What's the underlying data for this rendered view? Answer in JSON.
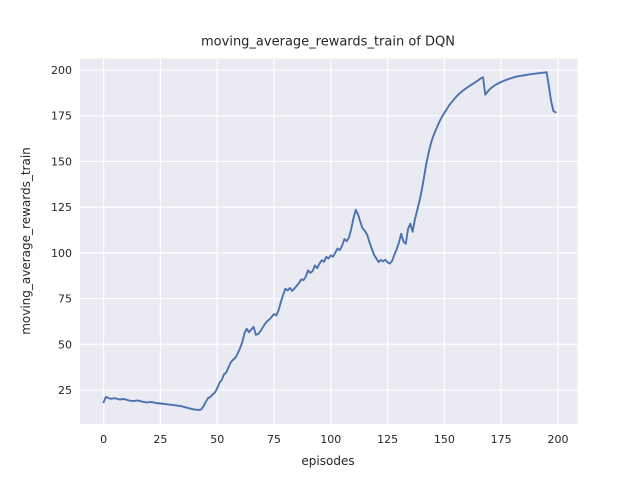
{
  "figure": {
    "title": "moving_average_rewards_train of DQN",
    "xlabel": "episodes",
    "ylabel": "moving_average_rewards_train"
  },
  "chart_data": {
    "type": "line",
    "title": "moving_average_rewards_train of DQN",
    "xlabel": "episodes",
    "ylabel": "moving_average_rewards_train",
    "xticks": [
      0,
      25,
      50,
      75,
      100,
      125,
      150,
      175,
      200
    ],
    "yticks": [
      25,
      50,
      75,
      100,
      125,
      150,
      175,
      200
    ],
    "xlim": [
      -10.4,
      208.6
    ],
    "ylim": [
      6.4,
      206.3
    ],
    "grid": true,
    "legend_position": "none",
    "style": {
      "line_color": "#4C72B0",
      "plot_background": "#EAEAF2",
      "grid_color": "#FFFFFF",
      "text_color": "#262626",
      "figure_background": "#FFFFFF"
    },
    "series": [
      {
        "name": "moving_average_rewards_train",
        "points": [
          [
            0,
            18.3
          ],
          [
            1,
            21.2
          ],
          [
            2,
            20.7
          ],
          [
            3,
            20.2
          ],
          [
            5,
            20.5
          ],
          [
            7,
            19.8
          ],
          [
            9,
            20.1
          ],
          [
            11,
            19.3
          ],
          [
            13,
            18.9
          ],
          [
            15,
            19.3
          ],
          [
            17,
            18.6
          ],
          [
            19,
            18.2
          ],
          [
            21,
            18.5
          ],
          [
            23,
            17.9
          ],
          [
            25,
            17.6
          ],
          [
            28,
            17.2
          ],
          [
            31,
            16.7
          ],
          [
            34,
            16.2
          ],
          [
            37,
            15.2
          ],
          [
            40,
            14.3
          ],
          [
            42,
            14.1
          ],
          [
            43,
            14.4
          ],
          [
            44,
            16.2
          ],
          [
            45,
            18.6
          ],
          [
            46,
            20.6
          ],
          [
            47,
            21.2
          ],
          [
            48,
            22.6
          ],
          [
            49,
            23.6
          ],
          [
            50,
            26.0
          ],
          [
            51,
            29.0
          ],
          [
            52,
            30.6
          ],
          [
            53,
            33.5
          ],
          [
            54,
            34.6
          ],
          [
            55,
            37.6
          ],
          [
            56,
            40.1
          ],
          [
            57,
            41.6
          ],
          [
            58,
            42.6
          ],
          [
            59,
            45.0
          ],
          [
            60,
            47.6
          ],
          [
            61,
            51.0
          ],
          [
            62,
            56.0
          ],
          [
            63,
            58.5
          ],
          [
            64,
            56.6
          ],
          [
            65,
            58.1
          ],
          [
            66,
            59.5
          ],
          [
            67,
            55.2
          ],
          [
            68,
            55.6
          ],
          [
            69,
            57.1
          ],
          [
            70,
            59.1
          ],
          [
            71,
            61.1
          ],
          [
            72,
            62.6
          ],
          [
            73,
            63.6
          ],
          [
            74,
            65.1
          ],
          [
            75,
            66.5
          ],
          [
            76,
            65.8
          ],
          [
            77,
            68.5
          ],
          [
            78,
            73.0
          ],
          [
            79,
            77.0
          ],
          [
            80,
            80.4
          ],
          [
            81,
            79.5
          ],
          [
            82,
            80.8
          ],
          [
            83,
            79.2
          ],
          [
            84,
            80.5
          ],
          [
            85,
            82.0
          ],
          [
            86,
            83.5
          ],
          [
            87,
            85.5
          ],
          [
            88,
            85.1
          ],
          [
            89,
            87.0
          ],
          [
            90,
            90.4
          ],
          [
            91,
            89.1
          ],
          [
            92,
            90.0
          ],
          [
            93,
            93.1
          ],
          [
            94,
            91.6
          ],
          [
            95,
            94.0
          ],
          [
            96,
            96.0
          ],
          [
            97,
            95.1
          ],
          [
            98,
            97.8
          ],
          [
            99,
            96.9
          ],
          [
            100,
            98.6
          ],
          [
            101,
            97.9
          ],
          [
            102,
            100.1
          ],
          [
            103,
            102.4
          ],
          [
            104,
            101.5
          ],
          [
            105,
            104.0
          ],
          [
            106,
            107.6
          ],
          [
            107,
            106.4
          ],
          [
            108,
            108.5
          ],
          [
            109,
            113.0
          ],
          [
            110,
            119.0
          ],
          [
            111,
            123.5
          ],
          [
            112,
            121.0
          ],
          [
            113,
            117.0
          ],
          [
            114,
            113.4
          ],
          [
            115,
            112.0
          ],
          [
            116,
            110.0
          ],
          [
            117,
            106.0
          ],
          [
            118,
            102.4
          ],
          [
            119,
            99.0
          ],
          [
            120,
            97.1
          ],
          [
            121,
            95.0
          ],
          [
            122,
            96.1
          ],
          [
            123,
            95.4
          ],
          [
            124,
            96.2
          ],
          [
            125,
            94.8
          ],
          [
            126,
            94.2
          ],
          [
            127,
            95.6
          ],
          [
            128,
            99.0
          ],
          [
            129,
            102.0
          ],
          [
            130,
            105.6
          ],
          [
            131,
            110.4
          ],
          [
            132,
            106.1
          ],
          [
            133,
            105.0
          ],
          [
            134,
            113.0
          ],
          [
            135,
            116.0
          ],
          [
            136,
            111.5
          ],
          [
            137,
            118.0
          ],
          [
            138,
            123.1
          ],
          [
            139,
            128.1
          ],
          [
            140,
            134.1
          ],
          [
            141,
            141.0
          ],
          [
            142,
            148.5
          ],
          [
            143,
            154.5
          ],
          [
            144,
            159.5
          ],
          [
            145,
            163.5
          ],
          [
            146,
            166.6
          ],
          [
            147,
            169.5
          ],
          [
            148,
            172.1
          ],
          [
            149,
            174.5
          ],
          [
            150,
            176.6
          ],
          [
            151,
            178.5
          ],
          [
            152,
            180.5
          ],
          [
            153,
            182.1
          ],
          [
            154,
            183.6
          ],
          [
            155,
            185.1
          ],
          [
            156,
            186.4
          ],
          [
            157,
            187.5
          ],
          [
            158,
            188.6
          ],
          [
            159,
            189.5
          ],
          [
            160,
            190.4
          ],
          [
            161,
            191.2
          ],
          [
            162,
            192.0
          ],
          [
            163,
            192.8
          ],
          [
            164,
            193.6
          ],
          [
            165,
            194.5
          ],
          [
            166,
            195.4
          ],
          [
            167,
            196.0
          ],
          [
            168,
            186.5
          ],
          [
            169,
            188.1
          ],
          [
            170,
            189.5
          ],
          [
            171,
            190.6
          ],
          [
            172,
            191.5
          ],
          [
            174,
            192.9
          ],
          [
            176,
            194.0
          ],
          [
            178,
            195.0
          ],
          [
            180,
            195.8
          ],
          [
            182,
            196.5
          ],
          [
            184,
            196.9
          ],
          [
            186,
            197.3
          ],
          [
            188,
            197.7
          ],
          [
            190,
            198.0
          ],
          [
            192,
            198.3
          ],
          [
            194,
            198.6
          ],
          [
            195,
            198.8
          ],
          [
            196,
            191.0
          ],
          [
            197,
            183.0
          ],
          [
            198,
            177.6
          ],
          [
            199,
            176.9
          ]
        ]
      }
    ]
  }
}
